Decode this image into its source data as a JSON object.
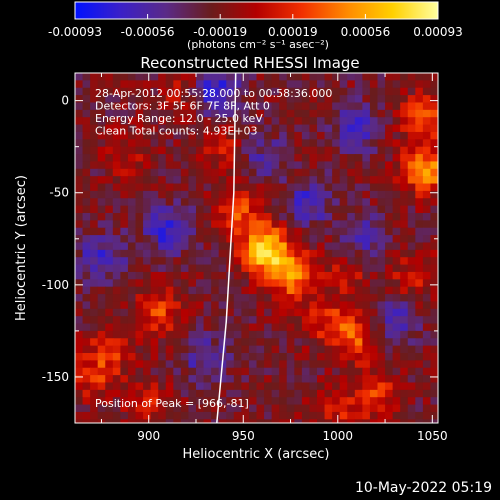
{
  "colorbar": {
    "ticks": [
      "-0.00093",
      "-0.00056",
      "-0.00019",
      "0.00019",
      "0.00056",
      "0.00093"
    ],
    "unit_label": "(photons cm⁻² s⁻¹ asec⁻²)",
    "colormap": [
      "#0011ff",
      "#3a20c8",
      "#5a2a88",
      "#6a1c1c",
      "#b40000",
      "#f23000",
      "#ff8a00",
      "#ffd000",
      "#ffffa0"
    ]
  },
  "plot": {
    "title": "Reconstructed RHESSI Image",
    "xlabel": "Heliocentric X (arcsec)",
    "ylabel": "Heliocentric Y (arcsec)",
    "xticks": [
      "900",
      "950",
      "1000",
      "1050"
    ],
    "yticks": [
      "0",
      "-50",
      "-100",
      "-150"
    ],
    "info_lines": [
      "28-Apr-2012 00:55:28.000 to 00:58:36.000",
      "Detectors: 3F 5F 6F 7F 8F, Att 0",
      "Energy Range: 12.0 - 25.0 keV",
      "Clean     Total counts: 4.93E+03"
    ],
    "peak_label": "Position of Peak = [966,-81]"
  },
  "footer": {
    "timestamp": "10-May-2022 05:19"
  },
  "chart_data": {
    "type": "heatmap",
    "title": "Reconstructed RHESSI Image",
    "xlabel": "Heliocentric X (arcsec)",
    "ylabel": "Heliocentric Y (arcsec)",
    "xlim": [
      861,
      1053
    ],
    "ylim": [
      -175,
      15
    ],
    "color_range": [
      -0.00093,
      0.00093
    ],
    "peak": [
      966,
      -81
    ],
    "limb_x": [
      946,
      945,
      941,
      936
    ],
    "limb_y": [
      15,
      -50,
      -120,
      -175
    ],
    "hot_spots_x": [
      962,
      975,
      948,
      1047,
      1045,
      1010,
      1020,
      995,
      905,
      880,
      900,
      940,
      1040,
      1000,
      920,
      890,
      1005,
      870
    ],
    "hot_spots_y": [
      -81,
      -95,
      -60,
      -38,
      -10,
      -130,
      -160,
      -120,
      -115,
      -135,
      -165,
      -25,
      -95,
      -170,
      5,
      -30,
      -95,
      -150
    ],
    "hot_spots_value": [
      0.00093,
      0.00065,
      0.00045,
      0.0007,
      0.0005,
      0.00045,
      0.0004,
      0.00038,
      0.00045,
      0.00035,
      0.0003,
      0.0003,
      0.0003,
      0.0003,
      0.00028,
      0.00025,
      0.00025,
      0.00035
    ],
    "cool_spots_x": [
      935,
      910,
      1010,
      985,
      1030,
      875,
      930,
      1015,
      960
    ],
    "cool_spots_y": [
      5,
      -70,
      -15,
      -55,
      -120,
      -85,
      -140,
      -75,
      -30
    ],
    "cool_spots_value": [
      -0.0006,
      -0.0005,
      -0.0004,
      -0.0004,
      -0.00035,
      -0.0004,
      -0.00035,
      -0.00035,
      -0.0003
    ]
  }
}
